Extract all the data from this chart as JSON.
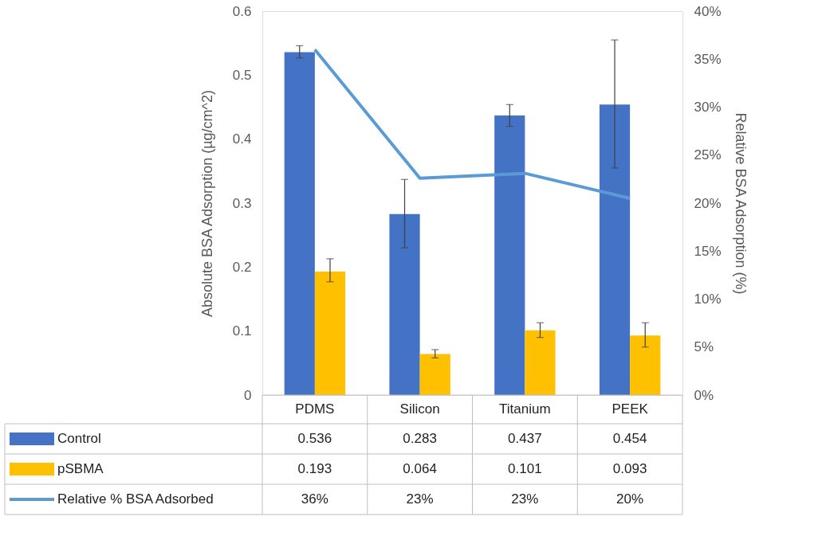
{
  "chart_data": {
    "type": "bar",
    "categories": [
      "PDMS",
      "Silicon",
      "Titanium",
      "PEEK"
    ],
    "ylabel": "Absolute BSA Adsorption (µg/cm^2)",
    "y2label": "Relative BSA Adsorption (%)",
    "ylim": [
      0,
      0.6
    ],
    "yticks": [
      0,
      0.1,
      0.2,
      0.3,
      0.4,
      0.5,
      0.6
    ],
    "y2lim": [
      0,
      40
    ],
    "y2ticks": [
      {
        "value": 0,
        "label": "0%"
      },
      {
        "value": 5,
        "label": "5%"
      },
      {
        "value": 10,
        "label": "10%"
      },
      {
        "value": 15,
        "label": "15%"
      },
      {
        "value": 20,
        "label": "20%"
      },
      {
        "value": 25,
        "label": "25%"
      },
      {
        "value": 30,
        "label": "30%"
      },
      {
        "value": 35,
        "label": "35%"
      },
      {
        "value": 40,
        "label": "40%"
      }
    ],
    "grid": false,
    "legend": "bottom",
    "series": [
      {
        "name": "Control",
        "color": "#4472c4",
        "values": [
          0.536,
          0.283,
          0.437,
          0.454
        ],
        "errors": [
          [
            0.527,
            0.546
          ],
          [
            0.23,
            0.337
          ],
          [
            0.42,
            0.454
          ],
          [
            0.355,
            0.555
          ]
        ],
        "value_labels": [
          "0.536",
          "0.283",
          "0.437",
          "0.454"
        ]
      },
      {
        "name": "pSBMA",
        "color": "#ffc000",
        "values": [
          0.193,
          0.064,
          0.101,
          0.093
        ],
        "errors": [
          [
            0.177,
            0.213
          ],
          [
            0.058,
            0.071
          ],
          [
            0.09,
            0.113
          ],
          [
            0.075,
            0.113
          ]
        ],
        "value_labels": [
          "0.193",
          "0.064",
          "0.101",
          "0.093"
        ]
      },
      {
        "name": "Relative % BSA Adsorbed",
        "type": "line",
        "axis": "y2",
        "color": "#5b9bd5",
        "values": [
          36.0,
          22.6,
          23.1,
          20.5
        ],
        "value_labels": [
          "36%",
          "23%",
          "23%",
          "20%"
        ]
      }
    ]
  }
}
